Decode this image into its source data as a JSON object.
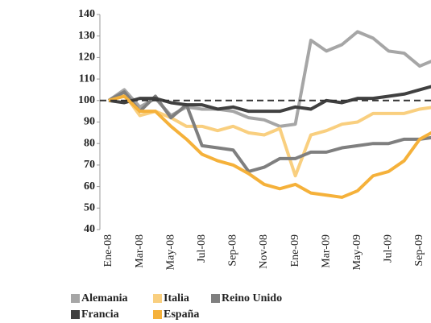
{
  "chart_data": {
    "type": "line",
    "categories": [
      "Ene-08",
      null,
      "Mar-08",
      null,
      "May-08",
      null,
      "Jul-08",
      null,
      "Sep-08",
      null,
      "Nov-08",
      null,
      "Ene-09",
      null,
      "Mar-09",
      null,
      "May-09",
      null,
      "Jul-09",
      null,
      "Sep-09",
      null
    ],
    "series": [
      {
        "name": "Alemania",
        "color": "#a6a6a6",
        "values": [
          100,
          105,
          97,
          101,
          93,
          97,
          96,
          96,
          95,
          92,
          91,
          88,
          89,
          128,
          123,
          126,
          132,
          129,
          123,
          122,
          116,
          119
        ]
      },
      {
        "name": "Italia",
        "color": "#f9cf7f",
        "values": [
          100,
          103,
          93,
          95,
          92,
          88,
          88,
          86,
          88,
          85,
          84,
          87,
          65,
          84,
          86,
          89,
          90,
          94,
          94,
          94,
          96,
          97
        ]
      },
      {
        "name": "Reino Unido",
        "color": "#7f7f7f",
        "values": [
          100,
          104,
          95,
          102,
          92,
          98,
          79,
          78,
          77,
          67,
          69,
          73,
          73,
          76,
          76,
          78,
          79,
          80,
          80,
          82,
          82,
          83
        ]
      },
      {
        "name": "Francia",
        "color": "#404040",
        "values": [
          100,
          99,
          101,
          101,
          99,
          98,
          98,
          96,
          97,
          95,
          95,
          95,
          97,
          96,
          100,
          99,
          101,
          101,
          102,
          103,
          105,
          107
        ]
      },
      {
        "name": "España",
        "color": "#f5b13a",
        "values": [
          100,
          102,
          95,
          95,
          88,
          82,
          75,
          72,
          70,
          66,
          61,
          59,
          61,
          57,
          56,
          55,
          58,
          65,
          67,
          72,
          82,
          86
        ]
      }
    ],
    "reference_line": 100,
    "ylim": [
      40,
      140
    ],
    "yticks": [
      40,
      50,
      60,
      70,
      80,
      90,
      100,
      110,
      120,
      130,
      140
    ]
  }
}
